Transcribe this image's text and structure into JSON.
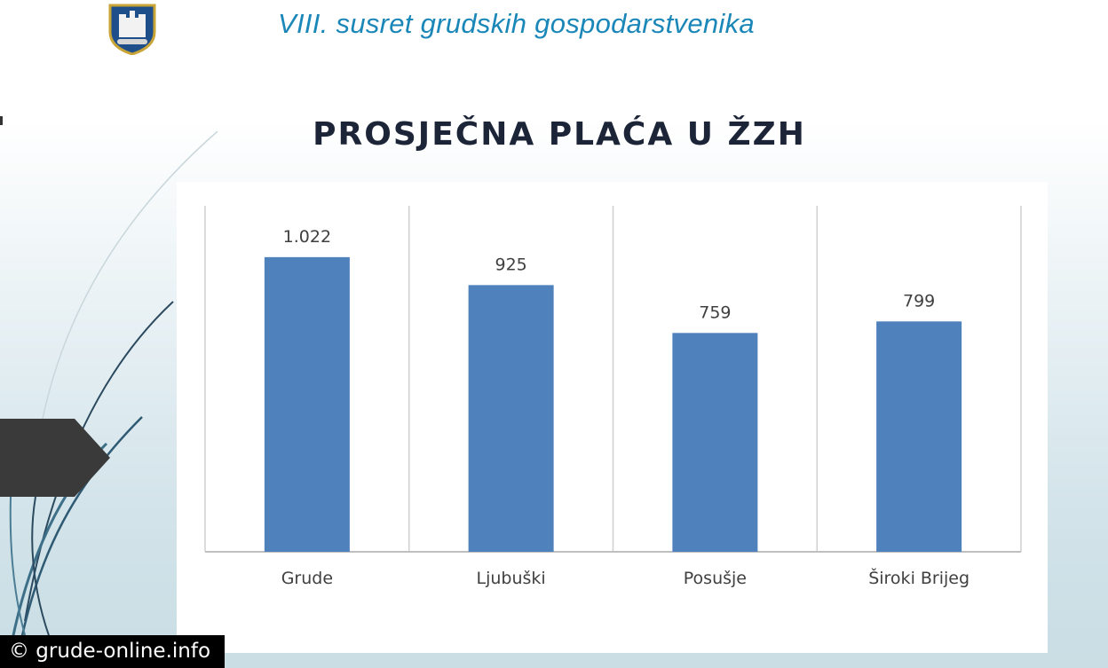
{
  "header": {
    "title": "VIII. susret grudskih gospodarstvenika"
  },
  "slide": {
    "title": "PROSJEČNA PLAĆA U ŽZH"
  },
  "watermark": {
    "text": "© grude-online.info"
  },
  "colors": {
    "bar": "#4f81bd",
    "header_text": "#1a87b8",
    "title_text": "#1c2438",
    "arrow": "#3a3a3a"
  },
  "chart_data": {
    "type": "bar",
    "categories": [
      "Grude",
      "Ljubuški",
      "Posušje",
      "Široki Brijeg"
    ],
    "values": [
      1022,
      925,
      759,
      799
    ],
    "value_labels": [
      "1.022",
      "925",
      "759",
      "799"
    ],
    "ylim": [
      0,
      1200
    ],
    "grid": "vertical separators between categories",
    "legend": "none"
  }
}
